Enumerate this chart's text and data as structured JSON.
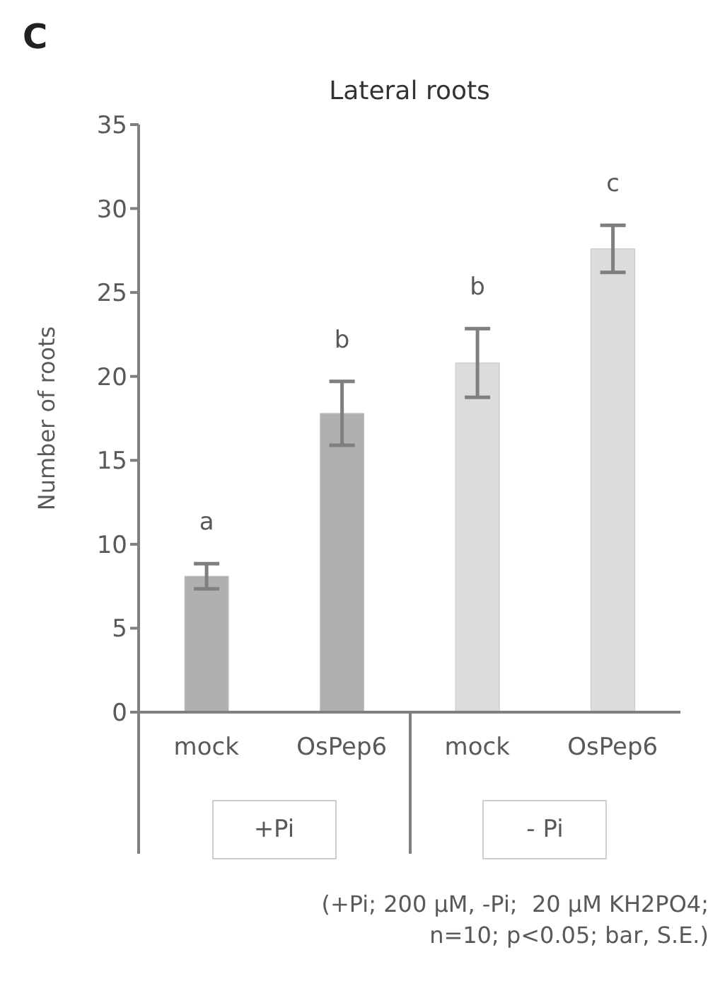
{
  "chart_data": {
    "type": "bar",
    "title": "Lateral roots",
    "ylabel": "Number of roots",
    "categories": [
      "mock",
      "OsPep6",
      "mock",
      "OsPep6"
    ],
    "values": [
      8.1,
      17.8,
      20.8,
      27.6
    ],
    "errors": [
      0.75,
      1.9,
      2.05,
      1.4
    ],
    "colors": [
      "#b0b0b0",
      "#b0b0b0",
      "#dcdcdc",
      "#dcdcdc"
    ],
    "ylim": [
      0,
      35
    ],
    "yticks": [
      0,
      5,
      10,
      15,
      20,
      25,
      30,
      35
    ],
    "annotations": [
      "C",
      "a",
      "b",
      "b",
      "c",
      "+Pi",
      "- Pi",
      "(+Pi; 200 µM, -Pi;  20 µM KH2PO4;\nn=10; p<0.05; bar, S.E.)"
    ]
  }
}
